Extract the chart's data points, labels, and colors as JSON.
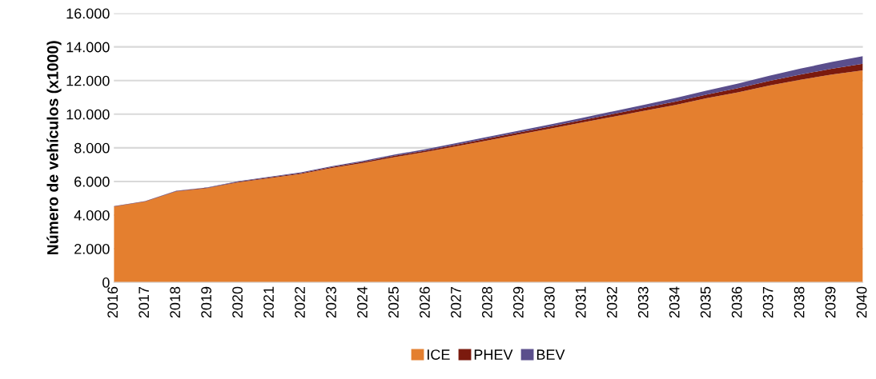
{
  "chart_data": {
    "type": "area",
    "stacked": true,
    "ylabel": "Número de vehículos (x1000)",
    "categories": [
      "2016",
      "2017",
      "2018",
      "2019",
      "2020",
      "2021",
      "2022",
      "2023",
      "2024",
      "2025",
      "2026",
      "2027",
      "2028",
      "2029",
      "2030",
      "2031",
      "2032",
      "2033",
      "2034",
      "2035",
      "2036",
      "2037",
      "2038",
      "2039",
      "2040"
    ],
    "series": [
      {
        "name": "ICE",
        "color": "#e47f2f",
        "values": [
          4500,
          4800,
          5400,
          5600,
          5950,
          6200,
          6450,
          6800,
          7100,
          7450,
          7750,
          8100,
          8450,
          8800,
          9150,
          9500,
          9850,
          10200,
          10550,
          10950,
          11300,
          11700,
          12050,
          12350,
          12600
        ]
      },
      {
        "name": "PHEV",
        "color": "#7b1a0e",
        "values": [
          20,
          20,
          30,
          30,
          40,
          50,
          50,
          60,
          70,
          80,
          90,
          100,
          110,
          120,
          130,
          140,
          160,
          180,
          200,
          220,
          250,
          280,
          310,
          350,
          400
        ]
      },
      {
        "name": "BEV",
        "color": "#5a4e8c",
        "values": [
          10,
          10,
          20,
          20,
          30,
          30,
          40,
          50,
          60,
          70,
          80,
          90,
          100,
          110,
          120,
          140,
          160,
          180,
          210,
          240,
          270,
          310,
          350,
          400,
          450
        ]
      }
    ],
    "ylim": [
      0,
      16000
    ],
    "yticks": [
      0,
      {
        "value": 2000,
        "label": "2.000"
      },
      {
        "value": 4000,
        "label": "4.000"
      },
      {
        "value": 6000,
        "label": "6.000"
      },
      {
        "value": 8000,
        "label": "8.000"
      },
      {
        "value": 10000,
        "label": "10.000"
      },
      {
        "value": 12000,
        "label": "12.000"
      },
      {
        "value": 14000,
        "label": "14.000"
      },
      {
        "value": 16000,
        "label": "16.000"
      }
    ],
    "grid": "y",
    "legend": "bottom"
  }
}
